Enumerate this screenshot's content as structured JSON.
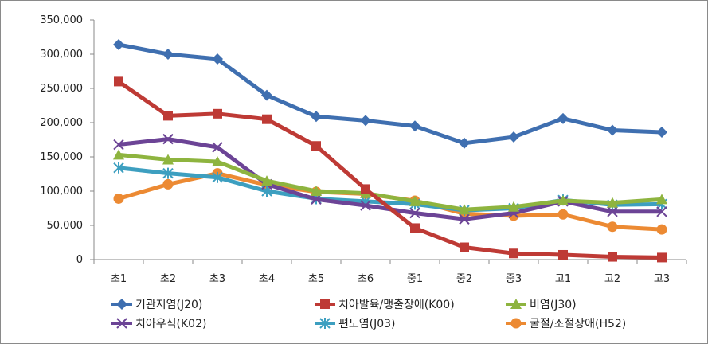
{
  "chart_data": {
    "type": "line",
    "categories": [
      "초1",
      "초2",
      "초3",
      "초4",
      "초5",
      "초6",
      "중1",
      "중2",
      "중3",
      "고1",
      "고2",
      "고3"
    ],
    "ylim": [
      0,
      350000
    ],
    "yticks": [
      0,
      50000,
      100000,
      150000,
      200000,
      250000,
      300000,
      350000
    ],
    "ytick_labels": [
      "0",
      "50,000",
      "100,000",
      "150,000",
      "200,000",
      "250,000",
      "300,000",
      "350,000"
    ],
    "grid": false,
    "legend_position": "bottom",
    "series": [
      {
        "name": "기관지염(J20)",
        "color": "#3f6fb0",
        "marker": "diamond",
        "values": [
          314000,
          300000,
          293000,
          240000,
          209000,
          203000,
          195000,
          170000,
          179000,
          206000,
          189000,
          186000
        ]
      },
      {
        "name": "치아발육/맹출장애(K00)",
        "color": "#be3a35",
        "marker": "square",
        "values": [
          260000,
          210000,
          213000,
          205000,
          166000,
          103000,
          46000,
          18000,
          9000,
          7000,
          4000,
          3000
        ]
      },
      {
        "name": "비염(J30)",
        "color": "#8eb43f",
        "marker": "triangle",
        "values": [
          153000,
          146000,
          143000,
          115000,
          100000,
          97000,
          85000,
          73000,
          77000,
          86000,
          83000,
          88000
        ]
      },
      {
        "name": "치아우식(K02)",
        "color": "#6c4496",
        "marker": "x",
        "values": [
          168000,
          176000,
          164000,
          110000,
          88000,
          79000,
          68000,
          59000,
          68000,
          85000,
          70000,
          70000
        ]
      },
      {
        "name": "편도염(J03)",
        "color": "#3d9fc0",
        "marker": "star",
        "values": [
          134000,
          126000,
          120000,
          100000,
          89000,
          85000,
          81000,
          72000,
          75000,
          87000,
          80000,
          81000
        ]
      },
      {
        "name": "굴절/조절장애(H52)",
        "color": "#ec8a33",
        "marker": "circle",
        "values": [
          89000,
          110000,
          126000,
          109000,
          99000,
          96000,
          86000,
          67000,
          64000,
          66000,
          48000,
          44000
        ]
      }
    ]
  }
}
